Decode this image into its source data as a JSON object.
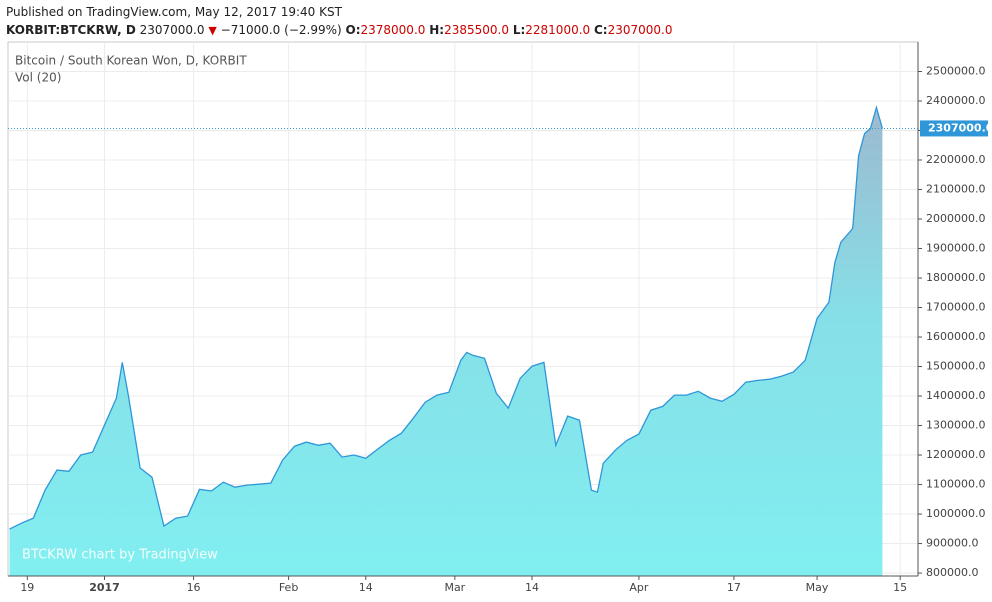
{
  "header": {
    "published": "Published on TradingView.com, May 12, 2017 19:40 KST",
    "symbol": "KORBIT:BTCKRW, D",
    "last": "2307000.0",
    "change": "−71000.0 (−2.99%)",
    "ohlc": [
      {
        "label": "O:",
        "value": "2378000.0"
      },
      {
        "label": "H:",
        "value": "2385500.0"
      },
      {
        "label": "L:",
        "value": "2281000.0"
      },
      {
        "label": "C:",
        "value": "2307000.0"
      }
    ]
  },
  "chart_data": {
    "type": "area",
    "title": "Bitcoin / South Korean Won, D, KORBIT",
    "subtitle": "Vol (20)",
    "watermark": "BTCKRW chart by TradingView",
    "color": "#2f96d8",
    "grid": true,
    "x": [
      "2016-12-16",
      "2016-12-18",
      "2016-12-20",
      "2016-12-22",
      "2016-12-24",
      "2016-12-26",
      "2016-12-28",
      "2016-12-30",
      "2017-01-01",
      "2017-01-03",
      "2017-01-04",
      "2017-01-05",
      "2017-01-07",
      "2017-01-09",
      "2017-01-11",
      "2017-01-13",
      "2017-01-15",
      "2017-01-17",
      "2017-01-19",
      "2017-01-21",
      "2017-01-23",
      "2017-01-25",
      "2017-01-27",
      "2017-01-29",
      "2017-01-31",
      "2017-02-02",
      "2017-02-04",
      "2017-02-06",
      "2017-02-08",
      "2017-02-10",
      "2017-02-12",
      "2017-02-14",
      "2017-02-16",
      "2017-02-18",
      "2017-02-20",
      "2017-02-22",
      "2017-02-24",
      "2017-02-26",
      "2017-02-28",
      "2017-03-02",
      "2017-03-03",
      "2017-03-04",
      "2017-03-06",
      "2017-03-08",
      "2017-03-10",
      "2017-03-12",
      "2017-03-14",
      "2017-03-16",
      "2017-03-18",
      "2017-03-20",
      "2017-03-22",
      "2017-03-24",
      "2017-03-25",
      "2017-03-26",
      "2017-03-28",
      "2017-03-30",
      "2017-04-01",
      "2017-04-03",
      "2017-04-05",
      "2017-04-07",
      "2017-04-09",
      "2017-04-11",
      "2017-04-13",
      "2017-04-15",
      "2017-04-17",
      "2017-04-19",
      "2017-04-21",
      "2017-04-23",
      "2017-04-25",
      "2017-04-27",
      "2017-04-29",
      "2017-05-01",
      "2017-05-03",
      "2017-05-04",
      "2017-05-05",
      "2017-05-07",
      "2017-05-08",
      "2017-05-09",
      "2017-05-10",
      "2017-05-11",
      "2017-05-12"
    ],
    "values": [
      949000,
      969000,
      986000,
      1081000,
      1149000,
      1145000,
      1200000,
      1210000,
      1301000,
      1393000,
      1514000,
      1403000,
      1156000,
      1125000,
      959000,
      986000,
      993000,
      1084000,
      1078000,
      1108000,
      1091000,
      1098000,
      1101000,
      1105000,
      1183000,
      1230000,
      1244000,
      1233000,
      1240000,
      1193000,
      1200000,
      1189000,
      1220000,
      1250000,
      1274000,
      1325000,
      1379000,
      1403000,
      1413000,
      1521000,
      1548000,
      1538000,
      1528000,
      1409000,
      1359000,
      1460000,
      1501000,
      1514000,
      1233000,
      1332000,
      1318000,
      1081000,
      1074000,
      1172000,
      1216000,
      1250000,
      1271000,
      1352000,
      1365000,
      1403000,
      1403000,
      1416000,
      1393000,
      1382000,
      1406000,
      1447000,
      1453000,
      1457000,
      1467000,
      1481000,
      1521000,
      1663000,
      1718000,
      1853000,
      1921000,
      1968000,
      2215000,
      2290000,
      2307000,
      2378000,
      2307000
    ],
    "xlim": [
      "2016-12-16",
      "2017-05-18"
    ],
    "xticks": [
      {
        "value": "2016-12-19",
        "label": "19"
      },
      {
        "value": "2017-01-01",
        "label": "2017"
      },
      {
        "value": "2017-01-16",
        "label": "16"
      },
      {
        "value": "2017-02-01",
        "label": "Feb"
      },
      {
        "value": "2017-02-14",
        "label": "14"
      },
      {
        "value": "2017-03-01",
        "label": "Mar"
      },
      {
        "value": "2017-03-14",
        "label": "14"
      },
      {
        "value": "2017-04-01",
        "label": "Apr"
      },
      {
        "value": "2017-04-17",
        "label": "17"
      },
      {
        "value": "2017-05-01",
        "label": "May"
      },
      {
        "value": "2017-05-15",
        "label": "15"
      }
    ],
    "ylim": [
      790000,
      2600000
    ],
    "yticks": [
      {
        "value": 800000,
        "label": "800000.0"
      },
      {
        "value": 900000,
        "label": "900000.0"
      },
      {
        "value": 1000000,
        "label": "1000000.0"
      },
      {
        "value": 1100000,
        "label": "1100000.0"
      },
      {
        "value": 1200000,
        "label": "1200000.0"
      },
      {
        "value": 1300000,
        "label": "1300000.0"
      },
      {
        "value": 1400000,
        "label": "1400000.0"
      },
      {
        "value": 1500000,
        "label": "1500000.0"
      },
      {
        "value": 1600000,
        "label": "1600000.0"
      },
      {
        "value": 1700000,
        "label": "1700000.0"
      },
      {
        "value": 1800000,
        "label": "1800000.0"
      },
      {
        "value": 1900000,
        "label": "1900000.0"
      },
      {
        "value": 2000000,
        "label": "2000000.0"
      },
      {
        "value": 2100000,
        "label": "2100000.0"
      },
      {
        "value": 2200000,
        "label": "2200000.0"
      },
      {
        "value": 2300000,
        "label": "2300000.0"
      },
      {
        "value": 2400000,
        "label": "2400000.0"
      },
      {
        "value": 2500000,
        "label": "2500000.0"
      }
    ],
    "price_line": {
      "value": 2307000,
      "label": "2307000.0"
    }
  }
}
